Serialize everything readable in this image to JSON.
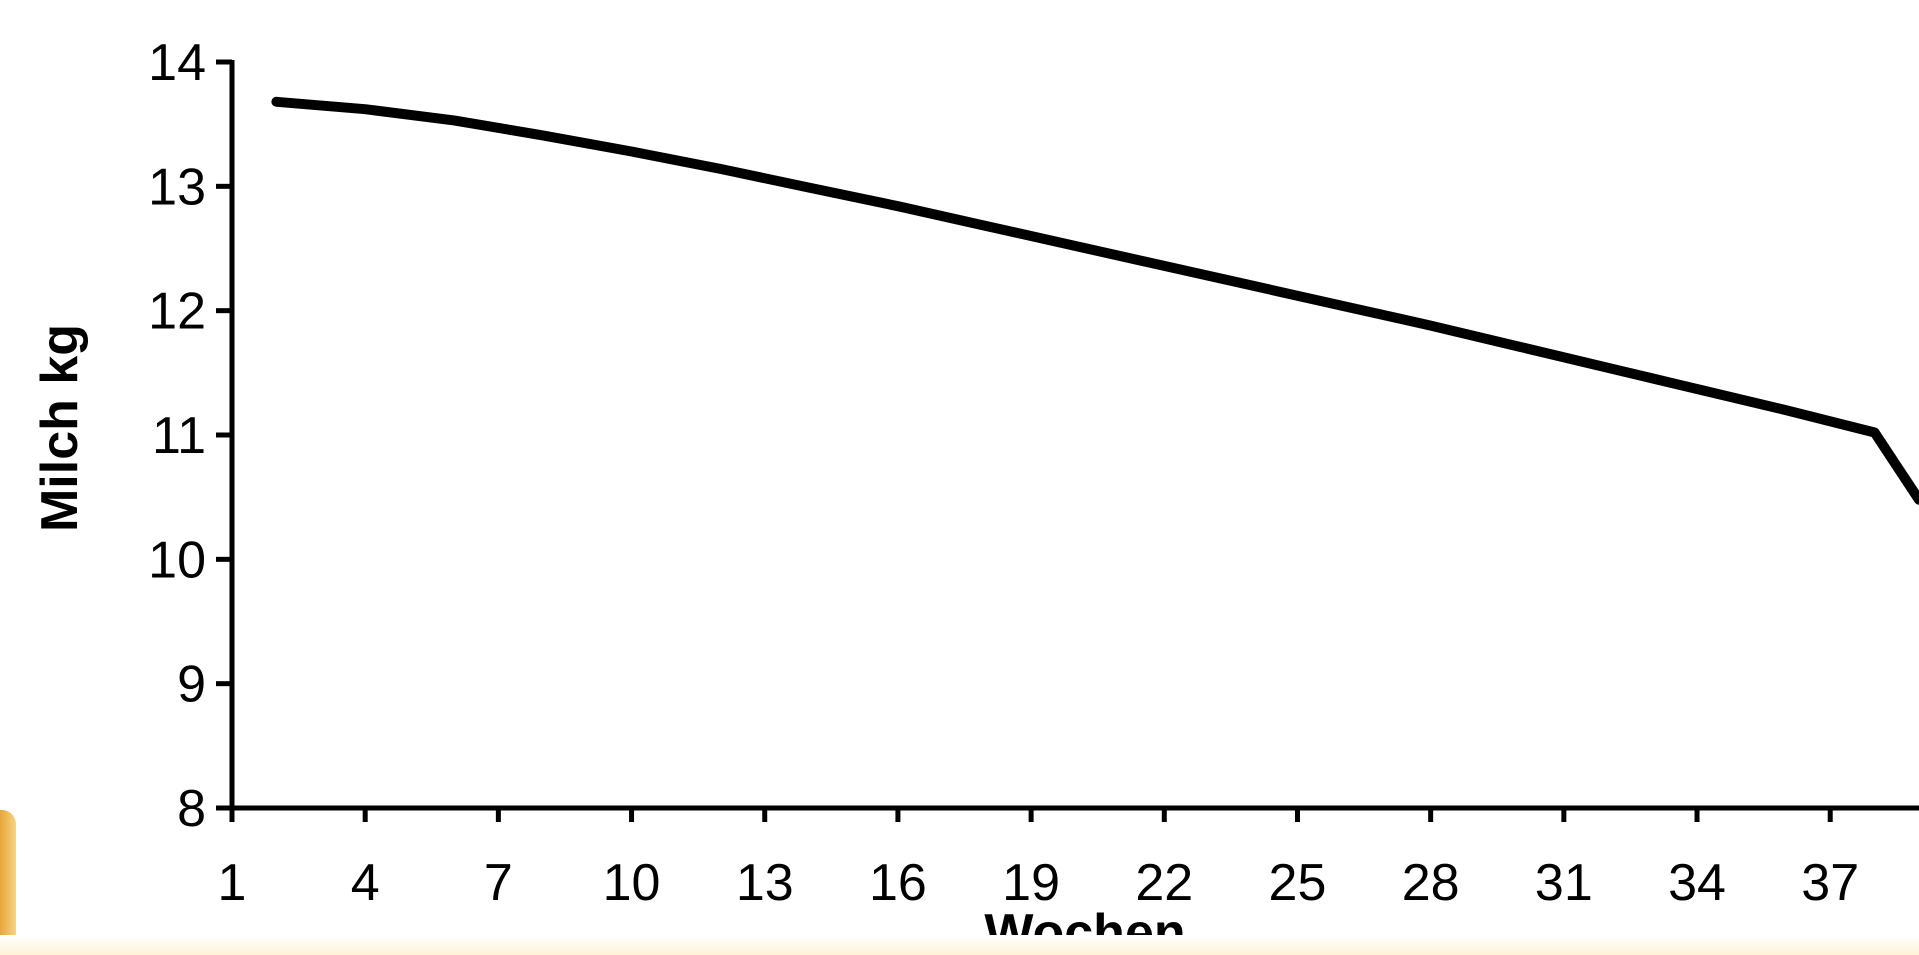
{
  "chart_data": {
    "type": "line",
    "title": "",
    "xlabel": "Wochen",
    "ylabel": "Milch kg",
    "xlim": [
      1,
      39
    ],
    "ylim": [
      8,
      14
    ],
    "x_ticks": [
      1,
      4,
      7,
      10,
      13,
      16,
      19,
      22,
      25,
      28,
      31,
      34,
      37
    ],
    "y_ticks": [
      8,
      9,
      10,
      11,
      12,
      13,
      14
    ],
    "grid": false,
    "legend": "none",
    "series": [
      {
        "color": "#000000",
        "x": [
          2,
          4,
          6,
          8,
          10,
          12,
          14,
          16,
          18,
          20,
          22,
          24,
          26,
          28,
          30,
          32,
          34,
          36,
          38,
          39
        ],
        "y": [
          13.68,
          13.62,
          13.53,
          13.41,
          13.28,
          13.14,
          12.99,
          12.84,
          12.68,
          12.52,
          12.36,
          12.2,
          12.04,
          11.88,
          11.71,
          11.54,
          11.37,
          11.2,
          11.02,
          10.48
        ]
      }
    ]
  }
}
